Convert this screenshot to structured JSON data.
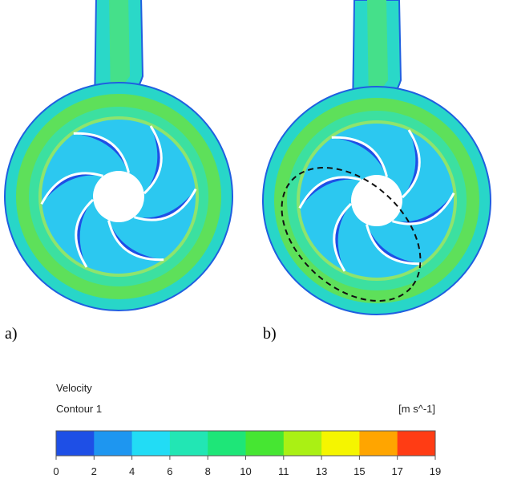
{
  "panels": [
    {
      "label": "a)"
    },
    {
      "label": "b)"
    }
  ],
  "legend": {
    "title": "Velocity",
    "subtitle": "Contour 1",
    "unit": "[m s^-1]",
    "colors": [
      "#1e4fe6",
      "#1e96f0",
      "#22dcf5",
      "#22e6b4",
      "#1ee678",
      "#46e632",
      "#aaf014",
      "#f5f500",
      "#ffa500",
      "#ff3c14"
    ],
    "ticks": [
      0,
      2,
      4,
      6,
      8,
      10,
      11,
      13,
      15,
      17,
      19
    ]
  }
}
